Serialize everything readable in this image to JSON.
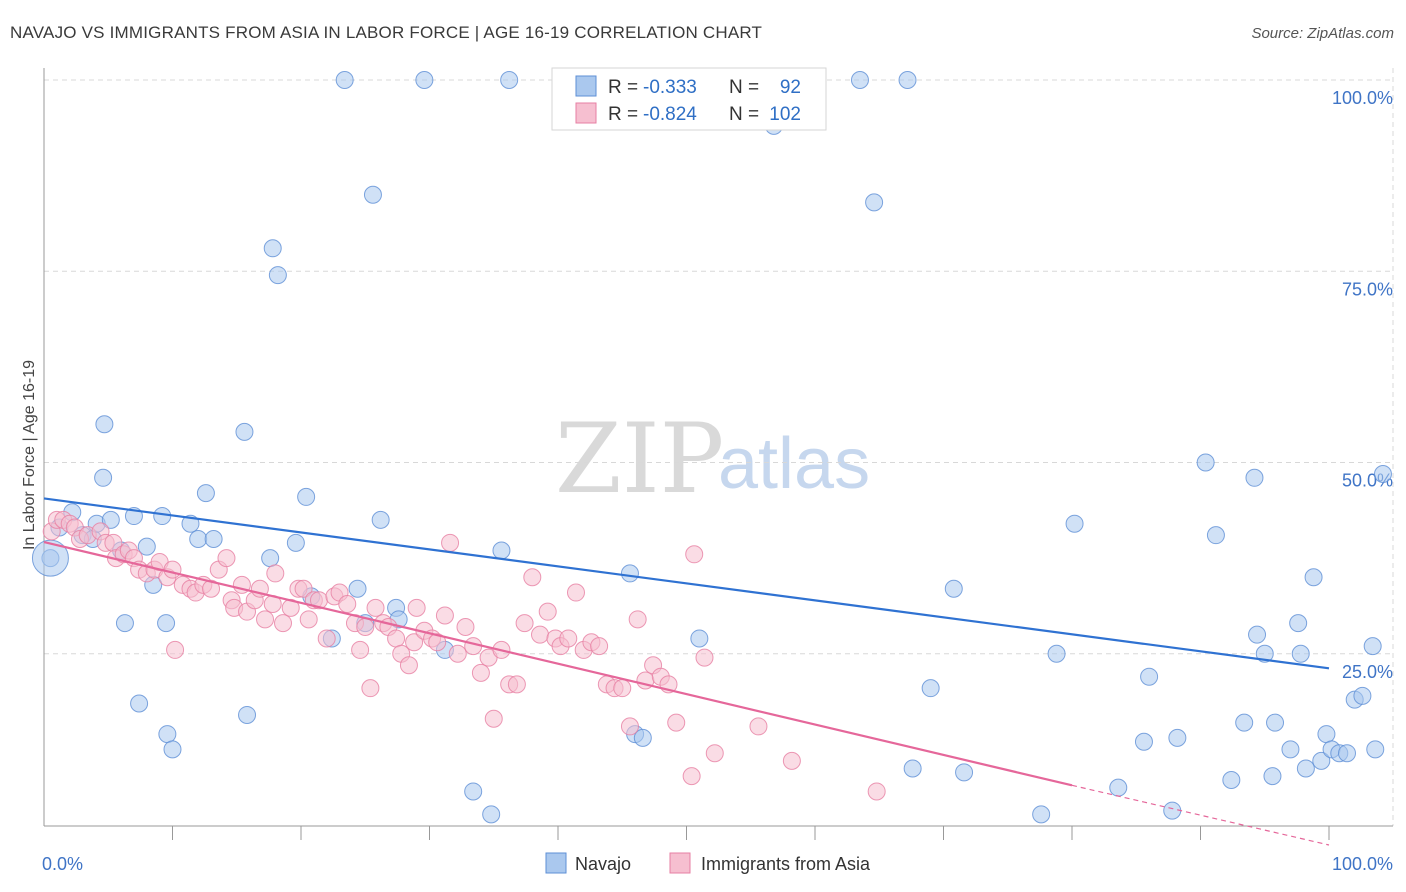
{
  "title": "NAVAJO VS IMMIGRANTS FROM ASIA IN LABOR FORCE | AGE 16-19 CORRELATION CHART",
  "source": "Source: ZipAtlas.com",
  "watermark": {
    "zip": "ZIP",
    "atlas": "atlas"
  },
  "colors": {
    "navajo_fill": "#aac8ee",
    "navajo_stroke": "#5e8fd6",
    "navajo_line": "#2f72d2",
    "asia_fill": "#f6bfd0",
    "asia_stroke": "#e77fa3",
    "asia_line": "#e5679a",
    "grid": "#d8d8d8",
    "axis_text": "#3f74c6"
  },
  "legend": {
    "rows": [
      {
        "r_label": "R =",
        "r_value": "-0.333",
        "n_label": "N =",
        "n_value": "92"
      },
      {
        "r_label": "R =",
        "r_value": "-0.824",
        "n_label": "N =",
        "n_value": "102"
      }
    ]
  },
  "bottom_legend": {
    "navajo": "Navajo",
    "asia": "Immigrants from Asia"
  },
  "chart_data": {
    "type": "scatter",
    "title": "NAVAJO VS IMMIGRANTS FROM ASIA IN LABOR FORCE | AGE 16-19 CORRELATION CHART",
    "ylabel": "In Labor Force | Age 16-19",
    "xlabel": "",
    "xlim": [
      0,
      100
    ],
    "ylim": [
      0,
      100
    ],
    "x_tick_labels": [
      "0.0%",
      "100.0%"
    ],
    "y_ticks": [
      25,
      50,
      75,
      100
    ],
    "y_tick_labels": [
      "25.0%",
      "50.0%",
      "75.0%",
      "100.0%"
    ],
    "grid": true,
    "legend_position": "top-center",
    "series": [
      {
        "name": "Navajo",
        "R": -0.333,
        "N": 92,
        "trend": {
          "x": [
            0,
            100
          ],
          "y": [
            45.3,
            23.1
          ]
        },
        "points": [
          [
            0.5,
            37.5
          ],
          [
            1.2,
            41.5
          ],
          [
            2.2,
            43.5
          ],
          [
            3.0,
            40.5
          ],
          [
            3.8,
            40.0
          ],
          [
            4.1,
            42.0
          ],
          [
            4.6,
            48.0
          ],
          [
            4.7,
            55.0
          ],
          [
            5.2,
            42.5
          ],
          [
            6.0,
            38.5
          ],
          [
            6.3,
            29.0
          ],
          [
            7.0,
            43.0
          ],
          [
            7.4,
            18.5
          ],
          [
            8.0,
            39.0
          ],
          [
            8.5,
            34.0
          ],
          [
            9.2,
            43.0
          ],
          [
            9.5,
            29.0
          ],
          [
            9.6,
            14.5
          ],
          [
            10.0,
            12.5
          ],
          [
            11.4,
            42.0
          ],
          [
            12.0,
            40.0
          ],
          [
            12.6,
            46.0
          ],
          [
            13.2,
            40.0
          ],
          [
            15.6,
            54.0
          ],
          [
            15.8,
            17.0
          ],
          [
            17.8,
            78.0
          ],
          [
            18.2,
            74.5
          ],
          [
            17.6,
            37.5
          ],
          [
            19.6,
            39.5
          ],
          [
            20.4,
            45.5
          ],
          [
            20.8,
            32.5
          ],
          [
            22.4,
            27.0
          ],
          [
            23.4,
            100.0
          ],
          [
            24.4,
            33.5
          ],
          [
            25.0,
            29.0
          ],
          [
            25.6,
            85.0
          ],
          [
            26.2,
            42.5
          ],
          [
            27.4,
            31.0
          ],
          [
            27.6,
            29.5
          ],
          [
            29.6,
            100.0
          ],
          [
            31.2,
            25.5
          ],
          [
            33.4,
            7.0
          ],
          [
            34.8,
            4.0
          ],
          [
            35.6,
            38.5
          ],
          [
            36.2,
            100.0
          ],
          [
            45.6,
            35.5
          ],
          [
            46.0,
            14.5
          ],
          [
            46.6,
            14.0
          ],
          [
            51.0,
            27.0
          ],
          [
            56.8,
            94.0
          ],
          [
            63.5,
            100.0
          ],
          [
            64.6,
            84.0
          ],
          [
            67.2,
            100.0
          ],
          [
            67.6,
            10.0
          ],
          [
            69.0,
            20.5
          ],
          [
            70.8,
            33.5
          ],
          [
            71.6,
            9.5
          ],
          [
            77.6,
            4.0
          ],
          [
            78.8,
            25.0
          ],
          [
            80.2,
            42.0
          ],
          [
            83.6,
            7.5
          ],
          [
            85.6,
            13.5
          ],
          [
            86.0,
            22.0
          ],
          [
            87.8,
            4.5
          ],
          [
            88.2,
            14.0
          ],
          [
            90.4,
            50.0
          ],
          [
            91.2,
            40.5
          ],
          [
            92.4,
            8.5
          ],
          [
            93.4,
            16.0
          ],
          [
            94.2,
            48.0
          ],
          [
            94.4,
            27.5
          ],
          [
            95.0,
            25.0
          ],
          [
            95.6,
            9.0
          ],
          [
            95.8,
            16.0
          ],
          [
            97.0,
            12.5
          ],
          [
            97.6,
            29.0
          ],
          [
            97.8,
            25.0
          ],
          [
            98.2,
            10.0
          ],
          [
            98.8,
            35.0
          ],
          [
            99.4,
            11.0
          ],
          [
            99.8,
            14.5
          ],
          [
            100.2,
            12.5
          ],
          [
            100.8,
            12.0
          ],
          [
            101.4,
            12.0
          ],
          [
            102.0,
            19.0
          ],
          [
            102.6,
            19.5
          ],
          [
            103.4,
            26.0
          ],
          [
            103.6,
            12.5
          ],
          [
            104.2,
            48.5
          ]
        ]
      },
      {
        "name": "Immigrants from Asia",
        "R": -0.824,
        "N": 102,
        "trend": {
          "x": [
            0,
            80
          ],
          "y": [
            39.6,
            7.8
          ]
        },
        "trend_dashed": {
          "x": [
            80,
            100
          ],
          "y": [
            7.8,
            0.0
          ]
        },
        "points": [
          [
            0.6,
            41.0
          ],
          [
            1.0,
            42.5
          ],
          [
            1.5,
            42.5
          ],
          [
            2.0,
            42.0
          ],
          [
            2.4,
            41.5
          ],
          [
            2.8,
            40.0
          ],
          [
            3.4,
            40.5
          ],
          [
            4.4,
            41.0
          ],
          [
            4.8,
            39.5
          ],
          [
            5.4,
            39.5
          ],
          [
            5.6,
            37.5
          ],
          [
            6.2,
            38.0
          ],
          [
            6.6,
            38.5
          ],
          [
            7.0,
            37.5
          ],
          [
            7.4,
            36.0
          ],
          [
            8.0,
            35.5
          ],
          [
            8.6,
            36.0
          ],
          [
            9.0,
            37.0
          ],
          [
            9.6,
            35.0
          ],
          [
            10.0,
            36.0
          ],
          [
            10.2,
            25.5
          ],
          [
            10.8,
            34.0
          ],
          [
            11.4,
            33.5
          ],
          [
            11.8,
            33.0
          ],
          [
            12.4,
            34.0
          ],
          [
            13.0,
            33.5
          ],
          [
            13.6,
            36.0
          ],
          [
            14.2,
            37.5
          ],
          [
            14.6,
            32.0
          ],
          [
            14.8,
            31.0
          ],
          [
            15.4,
            34.0
          ],
          [
            15.8,
            30.5
          ],
          [
            16.4,
            32.0
          ],
          [
            16.8,
            33.5
          ],
          [
            17.2,
            29.5
          ],
          [
            17.8,
            31.5
          ],
          [
            18.0,
            35.5
          ],
          [
            18.6,
            29.0
          ],
          [
            19.2,
            31.0
          ],
          [
            19.8,
            33.5
          ],
          [
            20.2,
            33.5
          ],
          [
            20.6,
            29.5
          ],
          [
            21.0,
            32.0
          ],
          [
            21.4,
            32.0
          ],
          [
            22.0,
            27.0
          ],
          [
            22.6,
            32.5
          ],
          [
            23.0,
            33.0
          ],
          [
            23.6,
            31.5
          ],
          [
            24.2,
            29.0
          ],
          [
            24.6,
            25.5
          ],
          [
            25.0,
            28.5
          ],
          [
            25.4,
            20.5
          ],
          [
            25.8,
            31.0
          ],
          [
            26.4,
            29.0
          ],
          [
            26.8,
            28.5
          ],
          [
            27.4,
            27.0
          ],
          [
            27.8,
            25.0
          ],
          [
            28.4,
            23.5
          ],
          [
            28.8,
            26.5
          ],
          [
            29.0,
            31.0
          ],
          [
            29.6,
            28.0
          ],
          [
            30.2,
            27.0
          ],
          [
            30.6,
            26.5
          ],
          [
            31.2,
            30.0
          ],
          [
            31.6,
            39.5
          ],
          [
            32.2,
            25.0
          ],
          [
            32.8,
            28.5
          ],
          [
            33.4,
            26.0
          ],
          [
            34.0,
            22.5
          ],
          [
            34.6,
            24.5
          ],
          [
            35.0,
            16.5
          ],
          [
            35.6,
            25.5
          ],
          [
            36.2,
            21.0
          ],
          [
            36.8,
            21.0
          ],
          [
            37.4,
            29.0
          ],
          [
            38.0,
            35.0
          ],
          [
            38.6,
            27.5
          ],
          [
            39.2,
            30.5
          ],
          [
            39.8,
            27.0
          ],
          [
            40.2,
            26.0
          ],
          [
            40.8,
            27.0
          ],
          [
            41.4,
            33.0
          ],
          [
            42.0,
            25.5
          ],
          [
            42.6,
            26.5
          ],
          [
            43.2,
            26.0
          ],
          [
            43.8,
            21.0
          ],
          [
            44.4,
            20.5
          ],
          [
            45.0,
            20.5
          ],
          [
            45.6,
            15.5
          ],
          [
            46.2,
            29.5
          ],
          [
            46.8,
            21.5
          ],
          [
            47.4,
            23.5
          ],
          [
            48.0,
            22.0
          ],
          [
            48.6,
            21.0
          ],
          [
            49.2,
            16.0
          ],
          [
            50.4,
            9.0
          ],
          [
            50.6,
            38.0
          ],
          [
            51.4,
            24.5
          ],
          [
            52.2,
            12.0
          ],
          [
            55.6,
            15.5
          ],
          [
            58.2,
            11.0
          ],
          [
            64.8,
            7.0
          ]
        ]
      }
    ]
  }
}
